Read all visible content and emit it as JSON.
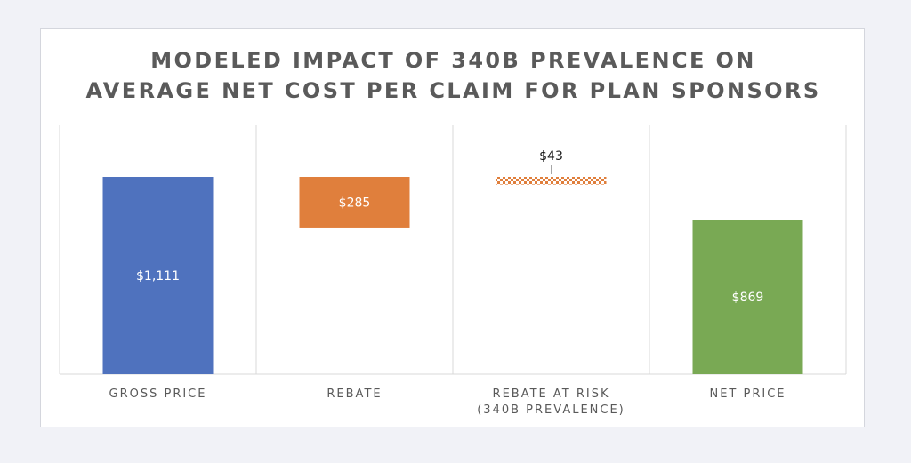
{
  "chart_data": {
    "type": "bar",
    "subtype": "waterfall",
    "title": [
      "MODELED IMPACT OF 340B PREVALENCE ON",
      "AVERAGE NET COST PER CLAIM FOR PLAN SPONSORS"
    ],
    "xlabel": "",
    "ylabel": "",
    "ylim": [
      0,
      1111
    ],
    "grid": false,
    "legend": "none",
    "categories": [
      [
        "GROSS PRICE"
      ],
      [
        "REBATE"
      ],
      [
        "REBATE AT RISK",
        "(340B PREVALENCE)"
      ],
      [
        "NET PRICE"
      ]
    ],
    "bars": [
      {
        "start": 0,
        "end": 1111,
        "value": 1111,
        "label": "$1,111",
        "color": "#4f72be",
        "pattern": "solid",
        "label_position": "inside"
      },
      {
        "start": 1111,
        "end": 826,
        "value": 285,
        "label": "$285",
        "color": "#e07f3c",
        "pattern": "solid",
        "label_position": "inside"
      },
      {
        "start": 1111,
        "end": 1068,
        "value": 43,
        "label": "$43",
        "color": "#e07f3c",
        "pattern": "checkered",
        "label_position": "above"
      },
      {
        "start": 0,
        "end": 869,
        "value": 869,
        "label": "$869",
        "color": "#79a954",
        "pattern": "solid",
        "label_position": "inside"
      }
    ]
  }
}
